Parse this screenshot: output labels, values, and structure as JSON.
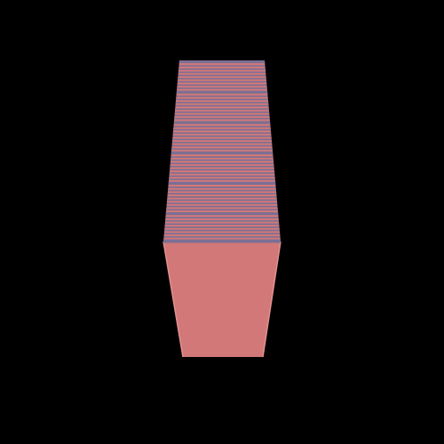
{
  "scene": {
    "background_color": "#000000",
    "shape": "stacked-layered-prism",
    "upper_section": {
      "colors": [
        "#d27878",
        "#7a6f95"
      ],
      "description": "layered stripes"
    },
    "lower_section": {
      "color": "#d27878",
      "edge_color": "#e39090"
    }
  }
}
